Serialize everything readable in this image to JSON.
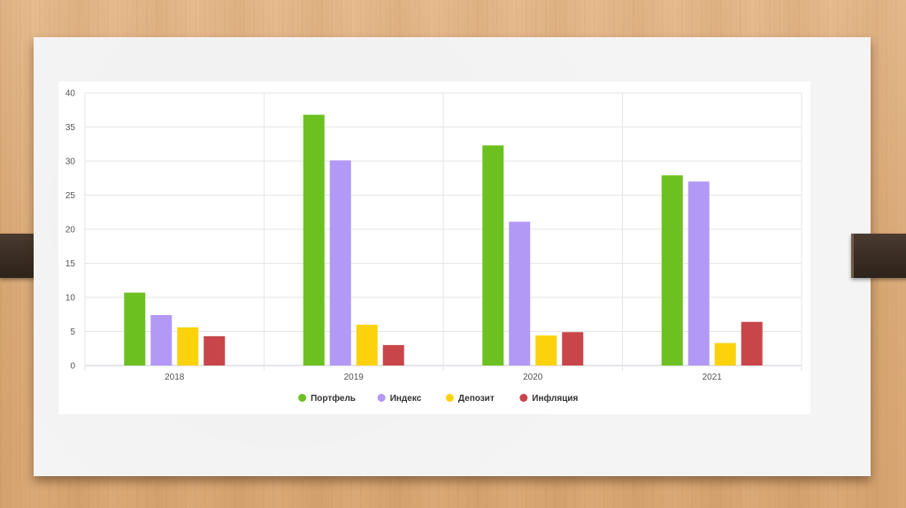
{
  "chart_data": {
    "type": "bar",
    "categories": [
      "2018",
      "2019",
      "2020",
      "2021"
    ],
    "series": [
      {
        "name": "Портфель",
        "color": "#6cc121",
        "values": [
          10.7,
          36.8,
          32.3,
          27.9
        ]
      },
      {
        "name": "Индекс",
        "color": "#b299f5",
        "values": [
          7.4,
          30.1,
          21.1,
          27.0
        ]
      },
      {
        "name": "Депозит",
        "color": "#fcd20c",
        "values": [
          5.6,
          6.0,
          4.4,
          3.3
        ]
      },
      {
        "name": "Инфляция",
        "color": "#c84649",
        "values": [
          4.3,
          3.0,
          4.9,
          6.4
        ]
      }
    ],
    "yticks": [
      "0",
      "5",
      "10",
      "15",
      "20",
      "25",
      "30",
      "35",
      "40"
    ],
    "ylim": [
      0,
      40
    ],
    "title": "",
    "xlabel": "",
    "ylabel": "",
    "grid": true,
    "legend_position": "bottom-center"
  }
}
